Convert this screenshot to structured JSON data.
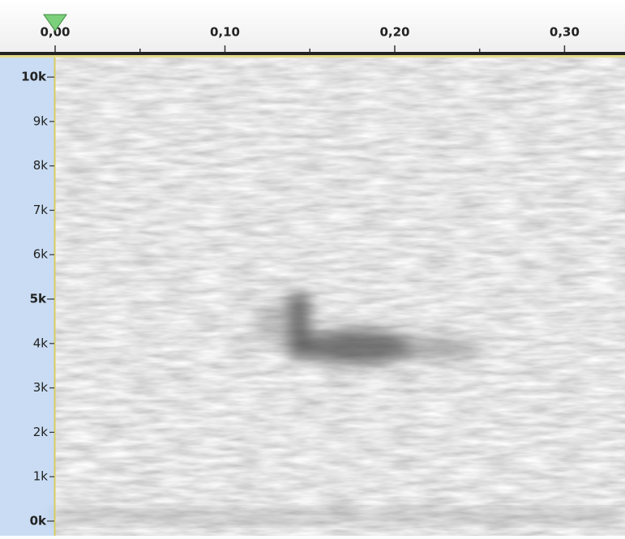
{
  "chart_data": {
    "type": "spectrogram",
    "xlim": [
      0,
      0.3356
    ],
    "xticks": [
      {
        "value": 0,
        "label": "0,00"
      },
      {
        "value": 0.1,
        "label": "0,10"
      },
      {
        "value": 0.2,
        "label": "0,20"
      },
      {
        "value": 0.3,
        "label": "0,30"
      }
    ],
    "xminorticks": [
      0.05,
      0.15,
      0.25
    ],
    "ylim": [
      -330,
      10440
    ],
    "yticks": [
      {
        "value": 0,
        "label": "0k"
      },
      {
        "value": 1000,
        "label": "1k"
      },
      {
        "value": 2000,
        "label": "2k"
      },
      {
        "value": 3000,
        "label": "3k"
      },
      {
        "value": 4000,
        "label": "4k"
      },
      {
        "value": 5000,
        "label": "5k"
      },
      {
        "value": 6000,
        "label": "6k"
      },
      {
        "value": 7000,
        "label": "7k"
      },
      {
        "value": 8000,
        "label": "8k"
      },
      {
        "value": 9000,
        "label": "9k"
      },
      {
        "value": 10000,
        "label": "10k"
      }
    ],
    "playhead": 0
  }
}
